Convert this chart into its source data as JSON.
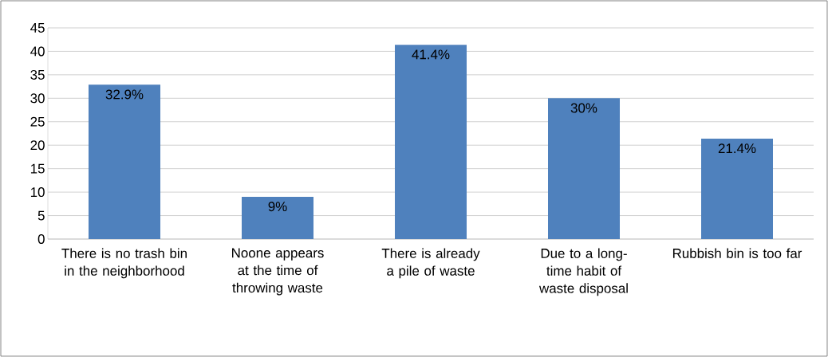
{
  "chart_data": {
    "type": "bar",
    "categories": [
      "There is no trash bin in the neighborhood",
      "Noone appears at the time of throwing waste",
      "There is already a pile of waste",
      "Due to a long-time habit of waste disposal",
      "Rubbish bin is too far"
    ],
    "values": [
      32.9,
      9,
      41.4,
      30,
      21.4
    ],
    "value_labels": [
      "32.9%",
      "9%",
      "41.4%",
      "30%",
      "21.4%"
    ],
    "color": "#4f81bd",
    "ylim": [
      0,
      45
    ],
    "yticks": [
      0,
      5,
      10,
      15,
      20,
      25,
      30,
      35,
      40,
      45
    ],
    "grid": "y"
  }
}
